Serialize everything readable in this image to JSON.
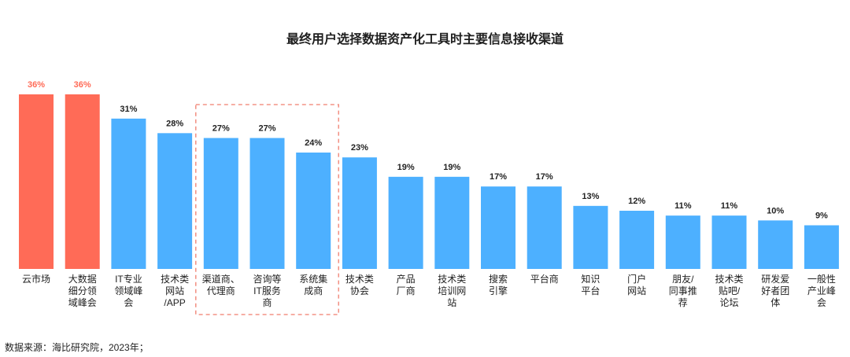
{
  "title": "最终用户选择数据资产化工具时主要信息接收渠道",
  "source": "数据来源：海比研究院，2023年；",
  "colors": {
    "highlight": "#ff6b57",
    "default": "#4db0ff",
    "box": "#f07e6e"
  },
  "chart_data": {
    "type": "bar",
    "categories": [
      [
        "云市场"
      ],
      [
        "大数据",
        "细分领",
        "域峰会"
      ],
      [
        "IT专业",
        "领域峰",
        "会"
      ],
      [
        "技术类",
        "网站",
        "/APP"
      ],
      [
        "渠道商、",
        "代理商"
      ],
      [
        "咨询等",
        "IT服务",
        "商"
      ],
      [
        "系统集",
        "成商"
      ],
      [
        "技术类",
        "协会"
      ],
      [
        "产品",
        "厂商"
      ],
      [
        "技术类",
        "培训网",
        "站"
      ],
      [
        "搜索",
        "引擎"
      ],
      [
        "平台商"
      ],
      [
        "知识",
        "平台"
      ],
      [
        "门户",
        "网站"
      ],
      [
        "朋友/",
        "同事推",
        "荐"
      ],
      [
        "技术类",
        "贴吧/",
        "论坛"
      ],
      [
        "研发爱",
        "好者团",
        "体"
      ],
      [
        "一般性",
        "产业峰",
        "会"
      ]
    ],
    "values": [
      36,
      36,
      31,
      28,
      27,
      27,
      24,
      23,
      19,
      19,
      17,
      17,
      13,
      12,
      11,
      11,
      10,
      9
    ],
    "value_labels": [
      "36%",
      "36%",
      "31%",
      "28%",
      "27%",
      "27%",
      "24%",
      "23%",
      "19%",
      "19%",
      "17%",
      "17%",
      "13%",
      "12%",
      "11%",
      "11%",
      "10%",
      "9%"
    ],
    "highlighted": [
      0,
      1
    ],
    "boxed": [
      4,
      5,
      6
    ],
    "ylim": [
      0,
      36
    ],
    "grid": false,
    "legend": "none"
  }
}
